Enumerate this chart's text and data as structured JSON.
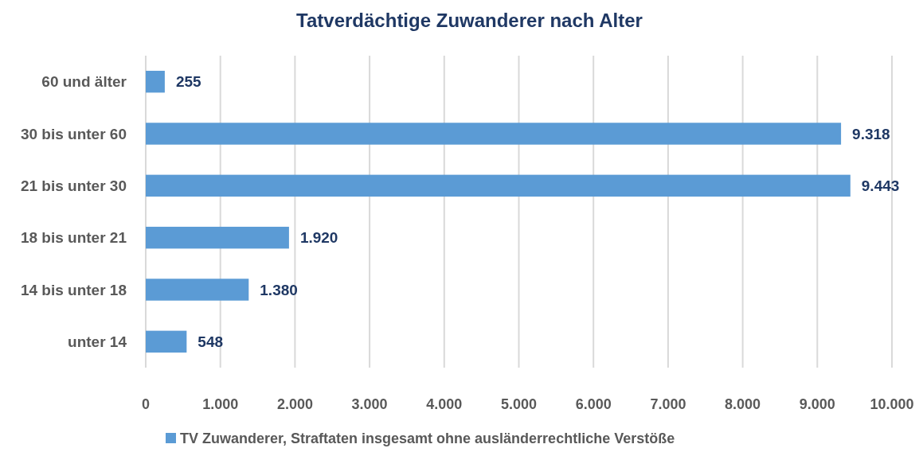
{
  "chart_data": {
    "type": "bar",
    "orientation": "horizontal",
    "title": "Tatverdächtige Zuwanderer nach Alter",
    "categories": [
      "60 und älter",
      "30 bis unter 60",
      "21 bis unter 30",
      "18 bis unter 21",
      "14 bis unter 18",
      "unter 14"
    ],
    "series": [
      {
        "name": "TV Zuwanderer, Straftaten insgesamt ohne ausländerrechtliche Verstöße",
        "color": "#5b9bd5",
        "values": [
          255,
          9318,
          9443,
          1920,
          1380,
          548
        ],
        "value_labels": [
          "255",
          "9.318",
          "9.443",
          "1.920",
          "1.380",
          "548"
        ]
      }
    ],
    "xlim": [
      0,
      10000
    ],
    "xticks": [
      0,
      {
        "value": 1000,
        "label": "1.000"
      },
      {
        "value": 2000,
        "label": "2.000"
      },
      {
        "value": 3000,
        "label": "3.000"
      },
      {
        "value": 4000,
        "label": "4.000"
      },
      {
        "value": 5000,
        "label": "5.000"
      },
      {
        "value": 6000,
        "label": "6.000"
      },
      {
        "value": 7000,
        "label": "7.000"
      },
      {
        "value": 8000,
        "label": "8.000"
      },
      {
        "value": 9000,
        "label": "9.000"
      },
      {
        "value": 10000,
        "label": "10.000"
      }
    ],
    "grid": "x",
    "legend": "bottom"
  }
}
